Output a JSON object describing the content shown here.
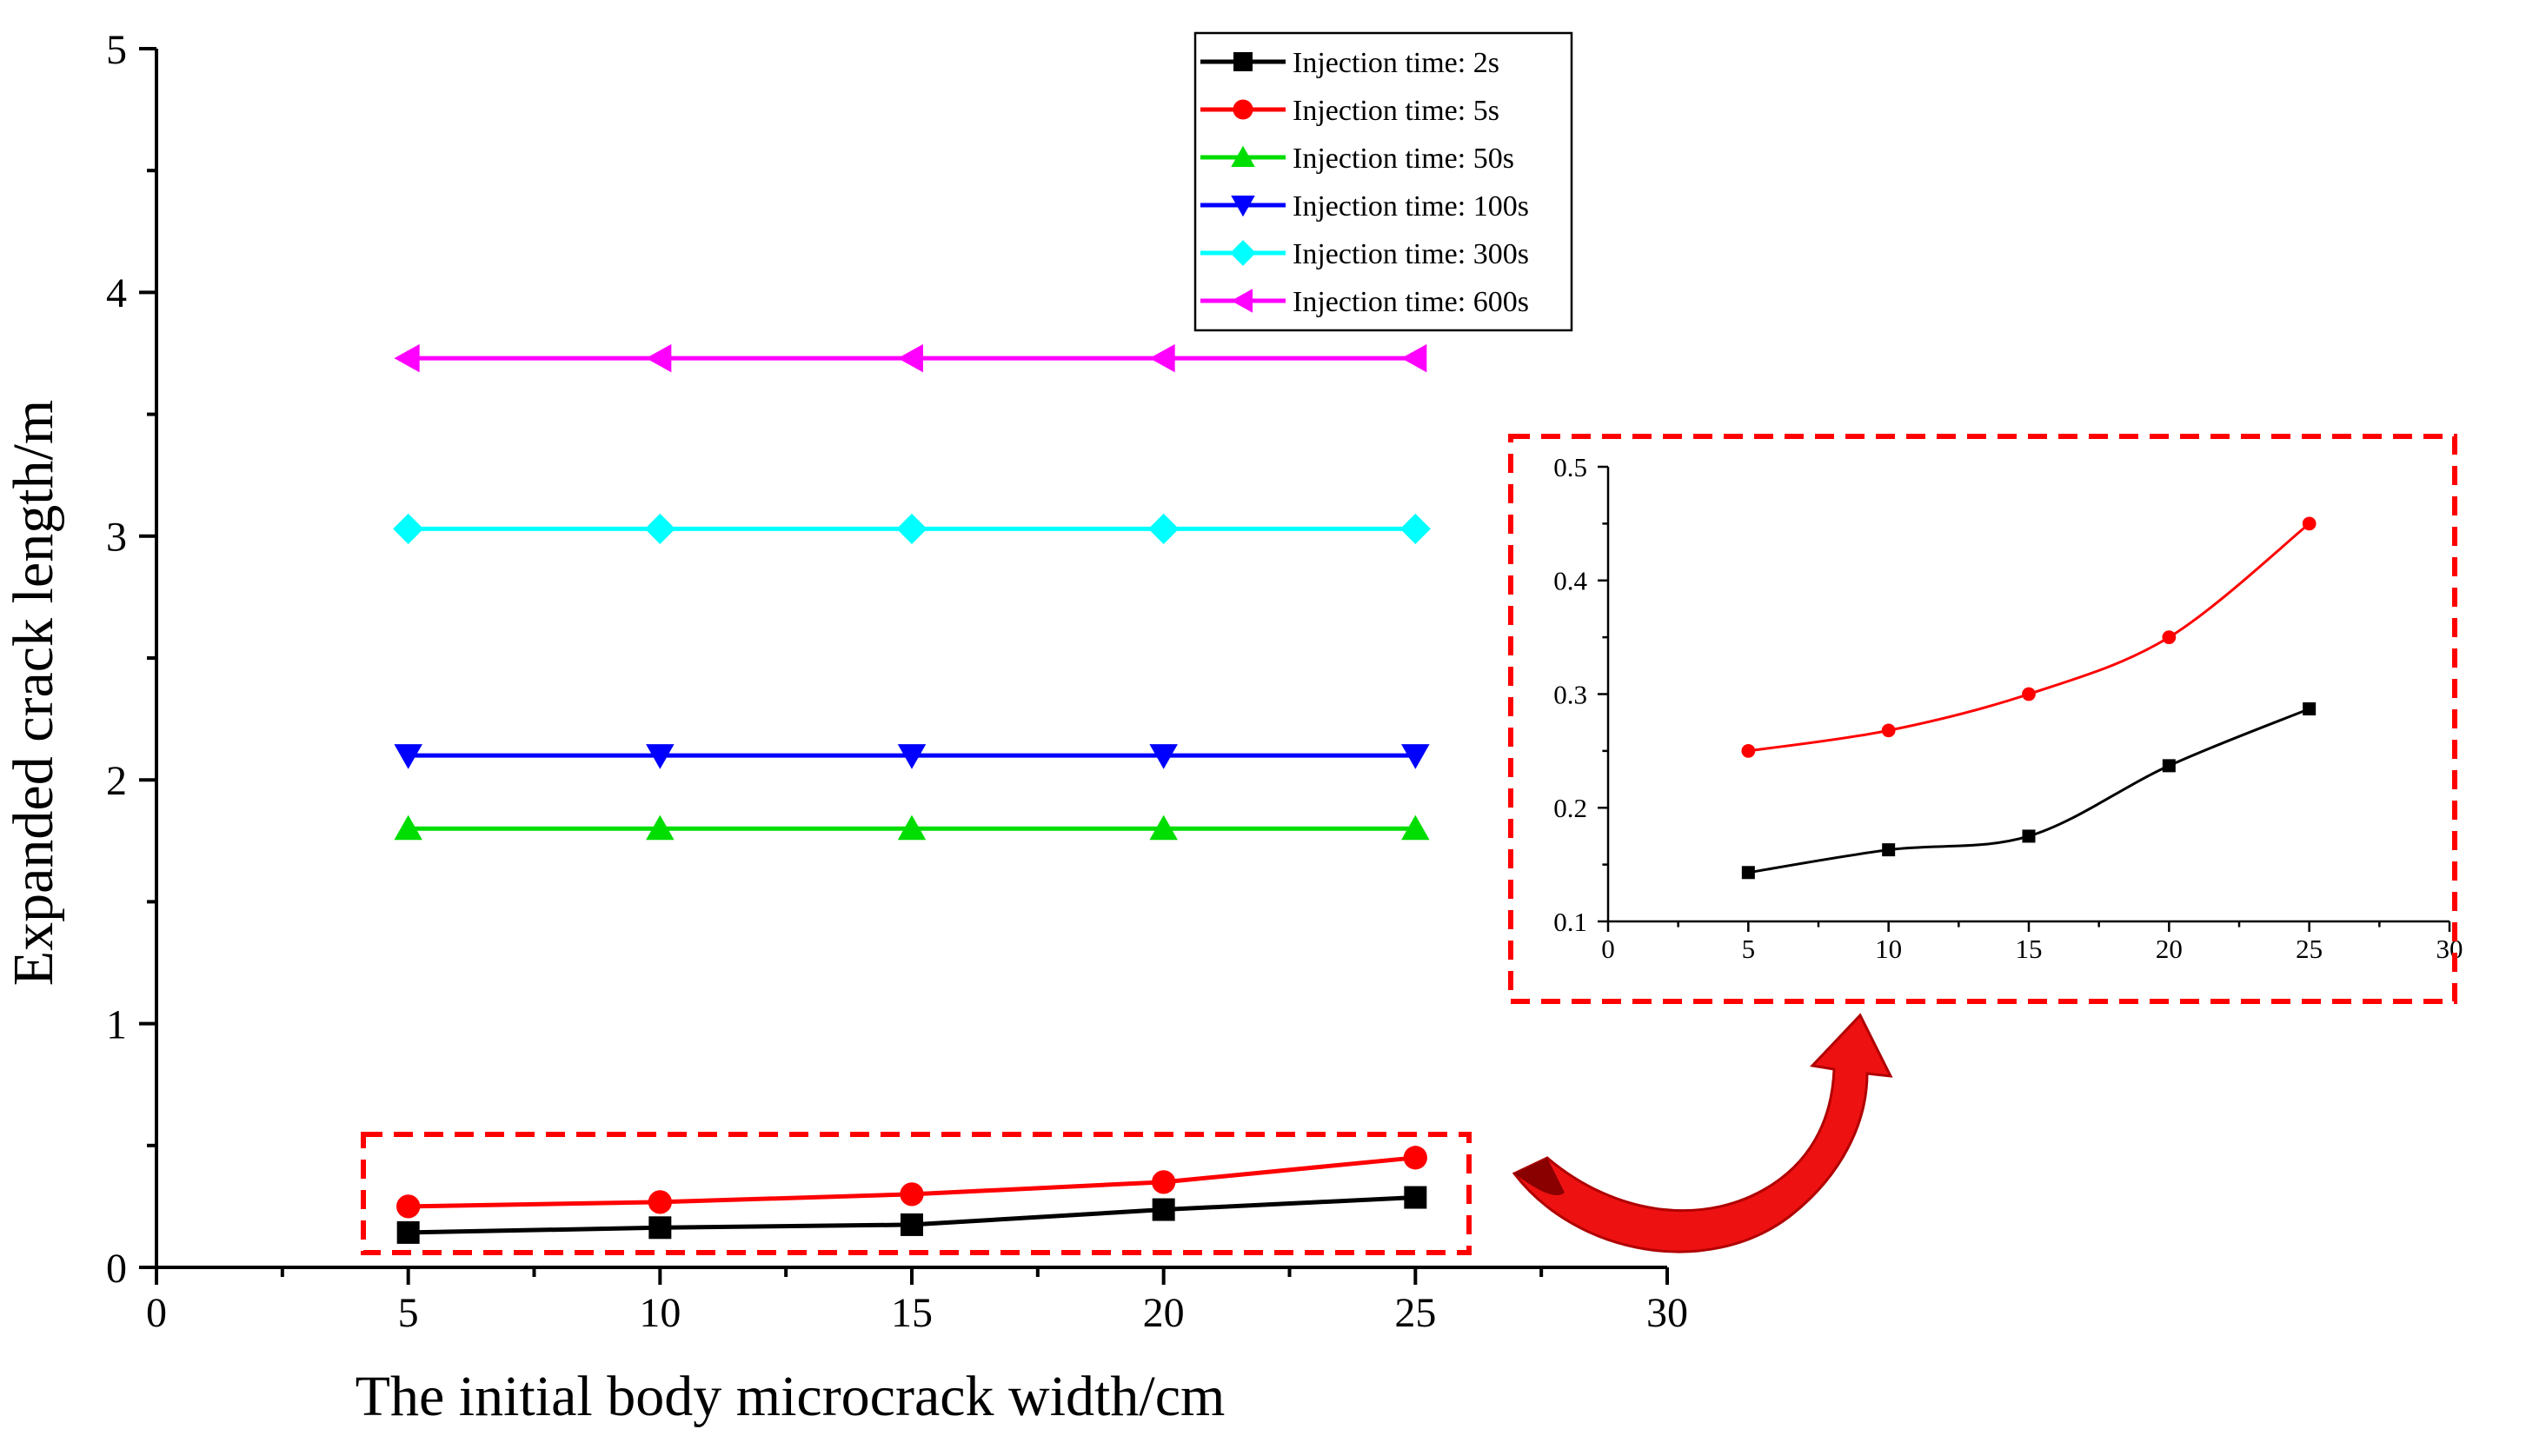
{
  "chart_data": [
    {
      "type": "line",
      "title": "",
      "xlabel": "The initial body microcrack width/cm",
      "ylabel": "Expanded crack length/m",
      "xlim": [
        0,
        30
      ],
      "ylim": [
        0,
        5
      ],
      "xticks": [
        0,
        5,
        10,
        15,
        20,
        25,
        30
      ],
      "yticks": [
        0,
        1,
        2,
        3,
        4,
        5
      ],
      "grid": false,
      "legend_position": "top-right",
      "x": [
        5,
        10,
        15,
        20,
        25
      ],
      "series": [
        {
          "name": "Injection time: 2s",
          "color": "#000000",
          "marker": "square",
          "values": [
            0.143,
            0.163,
            0.175,
            0.237,
            0.287
          ]
        },
        {
          "name": "Injection time: 5s",
          "color": "#ff0000",
          "marker": "circle",
          "values": [
            0.25,
            0.268,
            0.3,
            0.35,
            0.45
          ]
        },
        {
          "name": "Injection time: 50s",
          "color": "#00dd00",
          "marker": "triangle-up",
          "values": [
            1.8,
            1.8,
            1.8,
            1.8,
            1.8
          ]
        },
        {
          "name": "Injection time: 100s",
          "color": "#0000ff",
          "marker": "triangle-down",
          "values": [
            2.1,
            2.1,
            2.1,
            2.1,
            2.1
          ]
        },
        {
          "name": "Injection time: 300s",
          "color": "#00ffff",
          "marker": "diamond",
          "values": [
            3.03,
            3.03,
            3.03,
            3.03,
            3.03
          ]
        },
        {
          "name": "Injection time: 600s",
          "color": "#ff00ff",
          "marker": "triangle-left",
          "values": [
            3.73,
            3.73,
            3.73,
            3.73,
            3.73
          ]
        }
      ]
    },
    {
      "type": "line",
      "title": "",
      "xlabel": "",
      "ylabel": "",
      "xlim": [
        0,
        30
      ],
      "ylim": [
        0.1,
        0.5
      ],
      "xticks": [
        0,
        5,
        10,
        15,
        20,
        25,
        30
      ],
      "yticks": [
        0.1,
        0.2,
        0.3,
        0.4,
        0.5
      ],
      "grid": false,
      "x": [
        5,
        10,
        15,
        20,
        25
      ],
      "series": [
        {
          "name": "Injection time: 2s",
          "color": "#000000",
          "marker": "square",
          "values": [
            0.143,
            0.163,
            0.175,
            0.237,
            0.287
          ]
        },
        {
          "name": "Injection time: 5s",
          "color": "#ff0000",
          "marker": "circle",
          "values": [
            0.25,
            0.268,
            0.3,
            0.35,
            0.45
          ]
        }
      ]
    }
  ],
  "colors": {
    "highlight": "#ff0000",
    "axis": "#000000"
  }
}
